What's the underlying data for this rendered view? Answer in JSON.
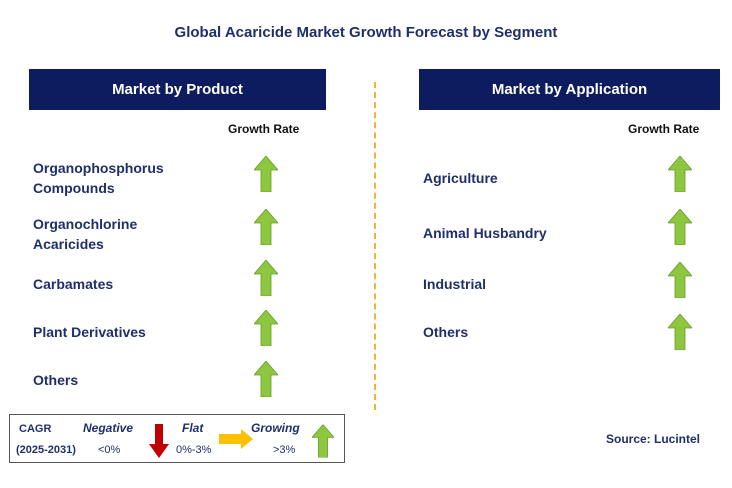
{
  "title": "Global Acaricide Market Growth Forecast by Segment",
  "colors": {
    "header_bg": "#0d1c5f",
    "text": "#1f2f6b",
    "up_arrow": "#8dc63f",
    "down_arrow": "#c00000",
    "flat_arrow": "#ffc000",
    "divider": "#f2b233"
  },
  "product": {
    "header": "Market by Product",
    "growth_label": "Growth Rate",
    "items": [
      {
        "label_lines": [
          "Organophosphorus",
          "Compounds"
        ],
        "trend": "growing"
      },
      {
        "label_lines": [
          "Organochlorine",
          "Acaricides"
        ],
        "trend": "growing"
      },
      {
        "label_lines": [
          "Carbamates"
        ],
        "trend": "growing"
      },
      {
        "label_lines": [
          "Plant Derivatives"
        ],
        "trend": "growing"
      },
      {
        "label_lines": [
          "Others"
        ],
        "trend": "growing"
      }
    ]
  },
  "application": {
    "header": "Market by Application",
    "growth_label": "Growth Rate",
    "items": [
      {
        "label": "Agriculture",
        "trend": "growing"
      },
      {
        "label": "Animal Husbandry",
        "trend": "growing"
      },
      {
        "label": "Industrial",
        "trend": "growing"
      },
      {
        "label": "Others",
        "trend": "growing"
      }
    ]
  },
  "legend": {
    "cagr_label": "CAGR",
    "period": "(2025-2031)",
    "negative": {
      "label": "Negative",
      "range": "<0%"
    },
    "flat": {
      "label": "Flat",
      "range": "0%-3%"
    },
    "growing": {
      "label": "Growing",
      "range": ">3%"
    }
  },
  "source": "Source: Lucintel"
}
